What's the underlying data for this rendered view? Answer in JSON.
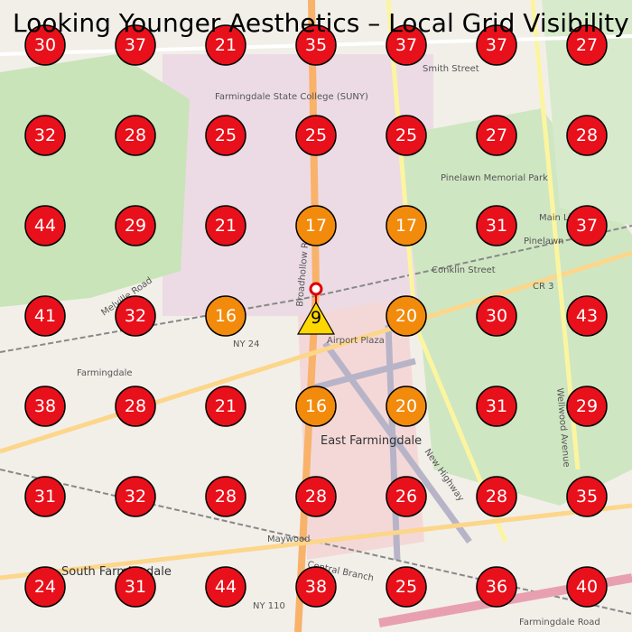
{
  "title": "Looking Younger Aesthetics – Local Grid Visibility",
  "grid": {
    "rows": [
      [
        {
          "value": 30,
          "color": "#e8101a"
        },
        {
          "value": 37,
          "color": "#e8101a"
        },
        {
          "value": 21,
          "color": "#e8101a"
        },
        {
          "value": 35,
          "color": "#e8101a"
        },
        {
          "value": 37,
          "color": "#e8101a"
        },
        {
          "value": 37,
          "color": "#e8101a"
        },
        {
          "value": 27,
          "color": "#e8101a"
        }
      ],
      [
        {
          "value": 32,
          "color": "#e8101a"
        },
        {
          "value": 28,
          "color": "#e8101a"
        },
        {
          "value": 25,
          "color": "#e8101a"
        },
        {
          "value": 25,
          "color": "#e8101a"
        },
        {
          "value": 25,
          "color": "#e8101a"
        },
        {
          "value": 27,
          "color": "#e8101a"
        },
        {
          "value": 28,
          "color": "#e8101a"
        }
      ],
      [
        {
          "value": 44,
          "color": "#e8101a"
        },
        {
          "value": 29,
          "color": "#e8101a"
        },
        {
          "value": 21,
          "color": "#e8101a"
        },
        {
          "value": 17,
          "color": "#f28a0c"
        },
        {
          "value": 17,
          "color": "#f28a0c"
        },
        {
          "value": 31,
          "color": "#e8101a"
        },
        {
          "value": 37,
          "color": "#e8101a"
        }
      ],
      [
        {
          "value": 41,
          "color": "#e8101a"
        },
        {
          "value": 32,
          "color": "#e8101a"
        },
        {
          "value": 16,
          "color": "#f28a0c"
        },
        {
          "value": 9,
          "color": "#ffd700",
          "shape": "triangle"
        },
        {
          "value": 20,
          "color": "#f28a0c"
        },
        {
          "value": 30,
          "color": "#e8101a"
        },
        {
          "value": 43,
          "color": "#e8101a"
        }
      ],
      [
        {
          "value": 38,
          "color": "#e8101a"
        },
        {
          "value": 28,
          "color": "#e8101a"
        },
        {
          "value": 21,
          "color": "#e8101a"
        },
        {
          "value": 16,
          "color": "#f28a0c"
        },
        {
          "value": 20,
          "color": "#f28a0c"
        },
        {
          "value": 31,
          "color": "#e8101a"
        },
        {
          "value": 29,
          "color": "#e8101a"
        }
      ],
      [
        {
          "value": 31,
          "color": "#e8101a"
        },
        {
          "value": 32,
          "color": "#e8101a"
        },
        {
          "value": 28,
          "color": "#e8101a"
        },
        {
          "value": 28,
          "color": "#e8101a"
        },
        {
          "value": 26,
          "color": "#e8101a"
        },
        {
          "value": 28,
          "color": "#e8101a"
        },
        {
          "value": 35,
          "color": "#e8101a"
        }
      ],
      [
        {
          "value": 24,
          "color": "#e8101a"
        },
        {
          "value": 31,
          "color": "#e8101a"
        },
        {
          "value": 44,
          "color": "#e8101a"
        },
        {
          "value": 38,
          "color": "#e8101a"
        },
        {
          "value": 25,
          "color": "#e8101a"
        },
        {
          "value": 36,
          "color": "#e8101a"
        },
        {
          "value": 40,
          "color": "#e8101a"
        }
      ]
    ]
  },
  "map_labels": [
    "Farmingdale State College (SUNY)",
    "Pinelawn Memorial Park",
    "East Farmingdale",
    "South Farmingdale",
    "Farmingdale",
    "Maywood",
    "Conklin Street",
    "Smith Street",
    "Main Line",
    "Pinelawn",
    "NY 24",
    "NY 110",
    "CR 3",
    "Broadhollow Road",
    "New Highway",
    "Wellwood Avenue",
    "Central Branch",
    "Melville Road",
    "Airport Plaza",
    "Farmingdale Road"
  ]
}
